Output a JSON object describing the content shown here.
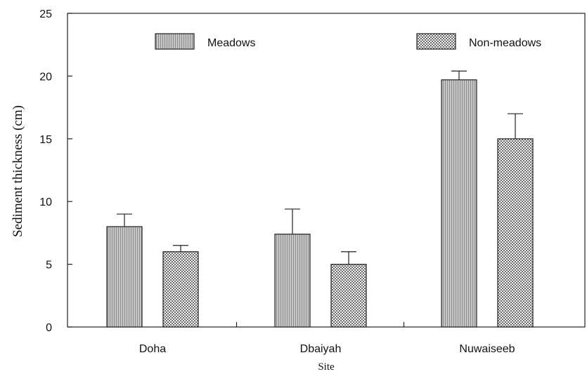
{
  "chart_data": {
    "type": "bar",
    "title": "",
    "xlabel": "Site",
    "ylabel": "Sediment thickness (cm)",
    "categories": [
      "Doha",
      "Dbaiyah",
      "Nuwaiseeb"
    ],
    "ylim": [
      0,
      25
    ],
    "yticks": [
      0,
      5,
      10,
      15,
      20,
      25
    ],
    "grid": false,
    "legend_placement": "top",
    "series": [
      {
        "name": "Meadows",
        "values": [
          8.0,
          7.4,
          19.7
        ],
        "error_up": [
          1.0,
          2.0,
          0.7
        ],
        "color": "#b4b4b4",
        "pattern": "vertical-hatch"
      },
      {
        "name": "Non-meadows",
        "values": [
          6.0,
          5.0,
          15.0
        ],
        "error_up": [
          0.5,
          1.0,
          2.0
        ],
        "color": "#c8c8c8",
        "pattern": "crosshatch"
      }
    ]
  }
}
